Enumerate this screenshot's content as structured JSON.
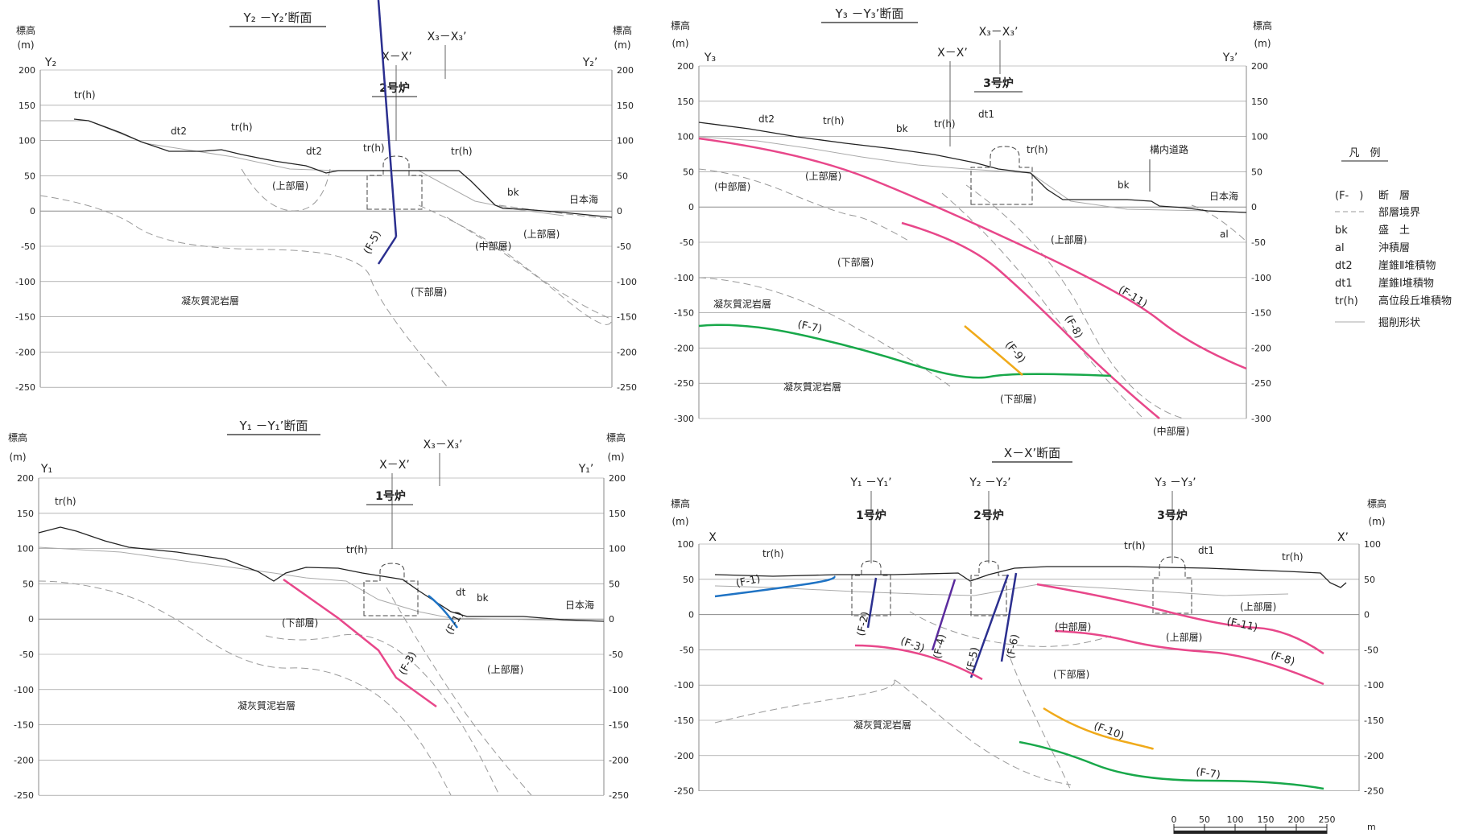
{
  "common": {
    "elev_word": "標高",
    "elev_unit": "(m)",
    "tuff": "凝灰質泥岩層",
    "upper": "(上部層)",
    "middle": "(中部層)",
    "lower": "(下部層)",
    "sea": "日本海",
    "bk": "bk",
    "trh": "tr(h)",
    "dt": "dt",
    "dt1": "dt1",
    "dt2": "dt2",
    "al": "al",
    "road": "構内道路"
  },
  "colors": {
    "pink": "#e8478a",
    "blue": "#1f73c4",
    "navy": "#2b2f8f",
    "purple": "#5b2b9e",
    "green": "#18a84a",
    "orange": "#f0aa1a",
    "ground": "#222222",
    "gray": "#9a9a9a",
    "grid": "#8a8a8a"
  },
  "panels": {
    "y2": {
      "title": "Y₂ －Y₂’断面",
      "left_end": "Y₂",
      "right_end": "Y₂’",
      "xx": "X－X’",
      "x3": "X₃－X₃’",
      "reactor": "2号炉",
      "ticks": [
        "200",
        "150",
        "100",
        "50",
        "0",
        "-50",
        "-100",
        "-150",
        "-200",
        "-250"
      ],
      "faults": [
        {
          "label": "(F-5)",
          "color": "navy"
        }
      ]
    },
    "y1": {
      "title": "Y₁ －Y₁’断面",
      "left_end": "Y₁",
      "right_end": "Y₁’",
      "xx": "X－X’",
      "x3": "X₃－X₃’",
      "reactor": "1号炉",
      "ticks": [
        "200",
        "150",
        "100",
        "50",
        "0",
        "-50",
        "-100",
        "-150",
        "-200",
        "-250"
      ],
      "faults": [
        {
          "label": "(F-1)",
          "color": "blue"
        },
        {
          "label": "(F-3)",
          "color": "pink"
        }
      ]
    },
    "y3": {
      "title": "Y₃ －Y₃’断面",
      "left_end": "Y₃",
      "right_end": "Y₃’",
      "xx": "X－X’",
      "x3": "X₃－X₃’",
      "reactor": "3号炉",
      "ticks": [
        "200",
        "150",
        "100",
        "50",
        "0",
        "-50",
        "-100",
        "-150",
        "-200",
        "-250",
        "-300"
      ],
      "faults": [
        {
          "label": "(F-11)",
          "color": "pink"
        },
        {
          "label": "(F-8)",
          "color": "pink"
        },
        {
          "label": "(F-7)",
          "color": "green"
        },
        {
          "label": "(F-9)",
          "color": "orange"
        }
      ]
    },
    "xx": {
      "title": "X－X’断面",
      "left_end": "X",
      "right_end": "X’",
      "y1": "Y₁ －Y₁’",
      "y2": "Y₂ －Y₂’",
      "y3": "Y₃ －Y₃’",
      "r1": "1号炉",
      "r2": "2号炉",
      "r3": "3号炉",
      "ticks": [
        "100",
        "50",
        "0",
        "-50",
        "-100",
        "-150",
        "-200",
        "-250"
      ],
      "faults": [
        {
          "label": "(F-1)",
          "color": "blue"
        },
        {
          "label": "(F-2)",
          "color": "navy"
        },
        {
          "label": "(F-3)",
          "color": "pink"
        },
        {
          "label": "(F-4)",
          "color": "purple"
        },
        {
          "label": "(F-5)",
          "color": "navy"
        },
        {
          "label": "(F-6)",
          "color": "navy"
        },
        {
          "label": "(F-11)",
          "color": "pink"
        },
        {
          "label": "(F-8)",
          "color": "pink"
        },
        {
          "label": "(F-10)",
          "color": "orange"
        },
        {
          "label": "(F-7)",
          "color": "green"
        }
      ]
    }
  },
  "legend": {
    "title": "凡　例",
    "items": [
      {
        "sym": "(F-　)",
        "text": "断　層"
      },
      {
        "sym": "",
        "text": "部層境界"
      },
      {
        "sym": "bk",
        "text": "盛　土"
      },
      {
        "sym": "al",
        "text": "沖積層"
      },
      {
        "sym": "dt2",
        "text": "崖錐Ⅱ堆積物"
      },
      {
        "sym": "dt1",
        "text": "崖錐Ⅰ堆積物"
      },
      {
        "sym": "tr(h)",
        "text": "高位段丘堆積物"
      },
      {
        "sym": "",
        "text": "掘削形状"
      }
    ]
  },
  "scale": {
    "ticks": [
      "0",
      "50",
      "100",
      "150",
      "200",
      "250"
    ],
    "unit": "m"
  }
}
